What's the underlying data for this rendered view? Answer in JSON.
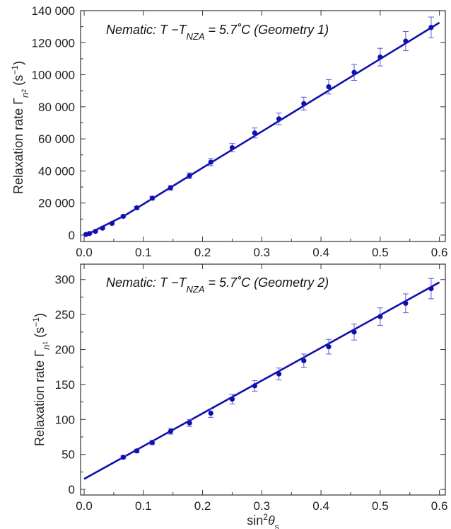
{
  "chart_data": [
    {
      "type": "scatter",
      "annotation": {
        "prefix": "Nematic: ",
        "t": "T",
        "minus": " −",
        "t2": "T",
        "sub": "NZA",
        "suffix": " = 5.7˚C (Geometry 1)"
      },
      "ylabel": {
        "main": "Relaxation rate Γ",
        "sub": "n",
        "subsub": "2",
        "unit": "(s",
        "exp": "−1",
        "close": ")"
      },
      "xlabel": "",
      "xlim": [
        -0.006,
        0.61
      ],
      "ylim": [
        -4000,
        140000
      ],
      "xticks": [
        0.0,
        0.1,
        0.2,
        0.3,
        0.4,
        0.5,
        0.6
      ],
      "xtick_labels": [
        "0.0",
        "0.1",
        "0.2",
        "0.3",
        "0.4",
        "0.5",
        "0.6"
      ],
      "yticks": [
        0,
        20000,
        40000,
        60000,
        80000,
        100000,
        120000,
        140000
      ],
      "ytick_labels": [
        "0",
        "20 000",
        "40 000",
        "60 000",
        "80 000",
        "100 000",
        "120 000",
        "140 000"
      ],
      "series": [
        {
          "color": "#1010b0",
          "points": [
            {
              "x": 0.003,
              "y": 400,
              "err": 300
            },
            {
              "x": 0.009,
              "y": 1000,
              "err": 300
            },
            {
              "x": 0.019,
              "y": 2300,
              "err": 400
            },
            {
              "x": 0.031,
              "y": 4300,
              "err": 500
            },
            {
              "x": 0.047,
              "y": 7300,
              "err": 600
            },
            {
              "x": 0.066,
              "y": 11700,
              "err": 700
            },
            {
              "x": 0.089,
              "y": 17000,
              "err": 900
            },
            {
              "x": 0.115,
              "y": 23000,
              "err": 1100
            },
            {
              "x": 0.146,
              "y": 29500,
              "err": 1400
            },
            {
              "x": 0.178,
              "y": 37000,
              "err": 1800
            },
            {
              "x": 0.214,
              "y": 45500,
              "err": 2200
            },
            {
              "x": 0.25,
              "y": 54500,
              "err": 2600
            },
            {
              "x": 0.288,
              "y": 63700,
              "err": 3100
            },
            {
              "x": 0.329,
              "y": 72500,
              "err": 3600
            },
            {
              "x": 0.371,
              "y": 82000,
              "err": 4000
            },
            {
              "x": 0.413,
              "y": 92500,
              "err": 4500
            },
            {
              "x": 0.456,
              "y": 101500,
              "err": 5000
            },
            {
              "x": 0.5,
              "y": 111000,
              "err": 5500
            },
            {
              "x": 0.543,
              "y": 121000,
              "err": 6000
            },
            {
              "x": 0.586,
              "y": 129500,
              "err": 6500
            }
          ],
          "fit": {
            "x": [
              0.0,
              0.07,
              0.6
            ],
            "y": [
              -500,
              12500,
              132500
            ]
          }
        }
      ]
    },
    {
      "type": "scatter",
      "annotation": {
        "prefix": "Nematic: ",
        "t": "T",
        "minus": " −",
        "t2": "T",
        "sub": "NZA",
        "suffix": " = 5.7˚C (Geometry 2)"
      },
      "ylabel": {
        "main": "Relaxation rate Γ",
        "sub": "n",
        "subsub": "1",
        "unit": "(s",
        "exp": "−1",
        "close": ")"
      },
      "xlabel": {
        "main": "sin",
        "exp": "2",
        "theta": "θ",
        "sub": "s"
      },
      "xlim": [
        -0.006,
        0.61
      ],
      "ylim": [
        -8,
        322
      ],
      "xticks": [
        0.0,
        0.1,
        0.2,
        0.3,
        0.4,
        0.5,
        0.6
      ],
      "xtick_labels": [
        "0.0",
        "0.1",
        "0.2",
        "0.3",
        "0.4",
        "0.5",
        "0.6"
      ],
      "yticks": [
        0,
        50,
        100,
        150,
        200,
        250,
        300
      ],
      "ytick_labels": [
        "0",
        "50",
        "100",
        "150",
        "200",
        "250",
        "300"
      ],
      "series": [
        {
          "color": "#1010b0",
          "points": [
            {
              "x": 0.066,
              "y": 46,
              "err": 2
            },
            {
              "x": 0.089,
              "y": 55,
              "err": 2.5
            },
            {
              "x": 0.115,
              "y": 67,
              "err": 3
            },
            {
              "x": 0.146,
              "y": 83,
              "err": 4
            },
            {
              "x": 0.178,
              "y": 95,
              "err": 5
            },
            {
              "x": 0.214,
              "y": 109,
              "err": 6
            },
            {
              "x": 0.25,
              "y": 129,
              "err": 7
            },
            {
              "x": 0.288,
              "y": 148,
              "err": 7.5
            },
            {
              "x": 0.329,
              "y": 165,
              "err": 8.5
            },
            {
              "x": 0.371,
              "y": 184,
              "err": 9.5
            },
            {
              "x": 0.413,
              "y": 204,
              "err": 10.5
            },
            {
              "x": 0.456,
              "y": 225,
              "err": 11.5
            },
            {
              "x": 0.5,
              "y": 247,
              "err": 12.5
            },
            {
              "x": 0.543,
              "y": 266,
              "err": 13.5
            },
            {
              "x": 0.586,
              "y": 287,
              "err": 14.5
            }
          ],
          "fit": {
            "x": [
              0.0,
              0.6
            ],
            "y": [
              15,
              296
            ]
          }
        }
      ]
    }
  ]
}
